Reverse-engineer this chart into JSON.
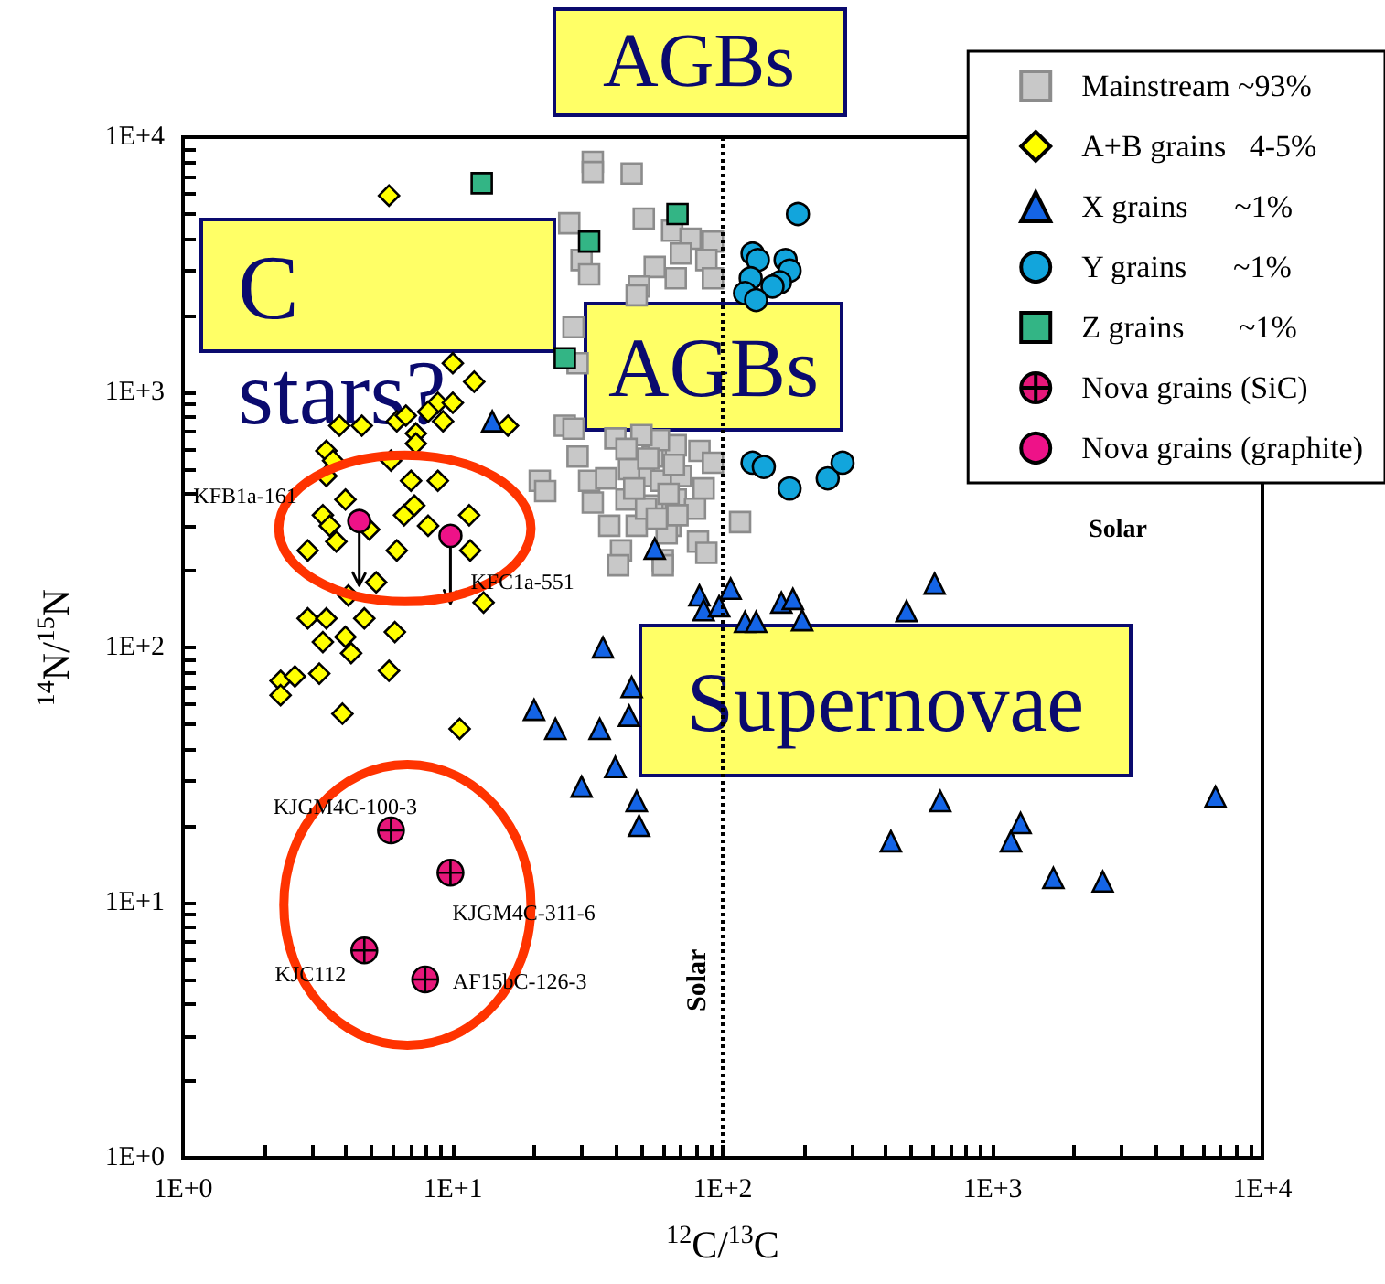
{
  "chart_data": {
    "type": "scatter",
    "xlabel": "$^{12}$C/$^{13}$C",
    "ylabel": "$^{14}$N/$^{15}$N",
    "log": "xy",
    "grid": false,
    "legend": "top right",
    "xlim": [
      1,
      10000
    ],
    "ylim": [
      1,
      10000
    ],
    "xticks": [
      {
        "value": 1,
        "label": "1E+0"
      },
      {
        "value": 10,
        "label": "1E+1"
      },
      {
        "value": 100,
        "label": "1E+2"
      },
      {
        "value": 1000,
        "label": "1E+3"
      },
      {
        "value": 10000,
        "label": "1E+4"
      }
    ],
    "yticks": [
      {
        "value": 1,
        "label": "1E+0"
      },
      {
        "value": 10,
        "label": "1E+1"
      },
      {
        "value": 100,
        "label": "1E+2"
      },
      {
        "value": 1000,
        "label": "1E+3"
      },
      {
        "value": 10000,
        "label": "1E+4"
      }
    ],
    "series": [
      {
        "name": "Mainstream ~93%",
        "color": "#c8c8c8",
        "marker": "square",
        "x": [
          33,
          33,
          46,
          51,
          27,
          65,
          76,
          92,
          70,
          87,
          30,
          32,
          56,
          67,
          92,
          49,
          48,
          28,
          29,
          26,
          28,
          40,
          29,
          55,
          67,
          82,
          92,
          21,
          22,
          32,
          37,
          51,
          59,
          70,
          85,
          33,
          44,
          55,
          67,
          79,
          38,
          48,
          64,
          81,
          116,
          42,
          60,
          41,
          87,
          60,
          45,
          52,
          58,
          62,
          47,
          53,
          66,
          57,
          50,
          63,
          44,
          68
        ],
        "values": [
          8000,
          7300,
          7200,
          4800,
          4600,
          4300,
          4000,
          3900,
          3500,
          3300,
          3300,
          2900,
          3100,
          2800,
          2800,
          2600,
          2400,
          1800,
          1300,
          740,
          720,
          660,
          560,
          560,
          620,
          590,
          530,
          450,
          410,
          450,
          460,
          470,
          450,
          470,
          420,
          370,
          380,
          360,
          380,
          350,
          300,
          300,
          300,
          260,
          310,
          240,
          220,
          210,
          235,
          210,
          500,
          350,
          650,
          280,
          420,
          550,
          520,
          320,
          680,
          400,
          600,
          330
        ]
      },
      {
        "name": "A+B grains   4-5%",
        "color": "#ffff00",
        "marker": "diamond",
        "x": [
          5.8,
          10,
          12,
          8.8,
          8.1,
          10,
          9.2,
          4.6,
          6.2,
          7.3,
          16,
          3.4,
          3.6,
          5.9,
          7.3,
          3.4,
          4.0,
          7.0,
          8.8,
          3.3,
          3.5,
          4.9,
          6.6,
          7.2,
          8.1,
          11.5,
          11.6,
          6.2,
          3.7,
          2.9,
          4.1,
          5.2,
          4.7,
          2.9,
          3.4,
          4.0,
          3.3,
          4.2,
          6.1,
          5.8,
          2.3,
          2.6,
          3.2,
          2.3,
          3.9,
          10.6,
          13,
          3.8,
          6.7
        ],
        "values": [
          5900,
          1300,
          1100,
          910,
          840,
          910,
          770,
          740,
          770,
          690,
          740,
          590,
          540,
          540,
          630,
          470,
          380,
          450,
          450,
          330,
          300,
          290,
          330,
          360,
          300,
          330,
          240,
          240,
          260,
          240,
          160,
          180,
          130,
          130,
          130,
          110,
          105,
          95,
          115,
          81,
          74,
          77,
          79,
          65,
          55,
          48,
          150,
          740,
          810
        ]
      },
      {
        "name": "X grains      ~1%",
        "color": "#1464e6",
        "marker": "triangle",
        "x": [
          14,
          56,
          82,
          107,
          85,
          97,
          165,
          182,
          121,
          133,
          197,
          480,
          610,
          36,
          46,
          45,
          20,
          24,
          35,
          40,
          30,
          48,
          49,
          640,
          420,
          1270,
          1170,
          1680,
          2560,
          6700
        ],
        "values": [
          770,
          244,
          160,
          170,
          140,
          145,
          150,
          155,
          126,
          126,
          128,
          139,
          178,
          100,
          70,
          54,
          57,
          48,
          48,
          34,
          28.5,
          25,
          20,
          25,
          17.4,
          20.5,
          17.4,
          12.5,
          12.1,
          26
        ]
      },
      {
        "name": "Y grains      ~1%",
        "color": "#12a5dc",
        "marker": "circle",
        "x": [
          190,
          129,
          135,
          171,
          177,
          127,
          163,
          153,
          121,
          133,
          129,
          142,
          177,
          245,
          278
        ],
        "values": [
          5000,
          3500,
          3300,
          3300,
          3000,
          2800,
          2700,
          2600,
          2450,
          2300,
          530,
          510,
          420,
          460,
          530
        ]
      },
      {
        "name": "Z grains       ~1%",
        "color": "#33b585",
        "marker": "square",
        "x": [
          12.8,
          68,
          32,
          26
        ],
        "values": [
          6600,
          5000,
          3900,
          1360
        ]
      },
      {
        "name": "Nova grains (SiC)",
        "color": "#e6177a",
        "marker": "cross",
        "x": [
          5.9,
          9.8,
          4.7,
          7.9
        ],
        "values": [
          19.2,
          13.1,
          6.5,
          5.0
        ]
      },
      {
        "name": "Nova grains (graphite)",
        "color": "#ee1288",
        "marker": "circle",
        "x": [
          4.5,
          9.8
        ],
        "values": [
          313,
          274
        ],
        "errors": [
          [
            175,
            313
          ],
          [
            149,
            274
          ]
        ]
      }
    ],
    "ref_lines": [
      {
        "axis": "x",
        "value": 100,
        "label": "Solar",
        "line_style": "dotted"
      }
    ],
    "annotations": [
      "AGBs",
      "C stars?",
      "AGBs",
      "Supernovae",
      {
        "text": "KFB1a-161",
        "x": 4.5,
        "y": 313
      },
      {
        "text": "KFC1a-551",
        "x": 9.8,
        "y": 274
      },
      {
        "text": "KJGM4C-100-3",
        "x": 5.9,
        "y": 19.2
      },
      {
        "text": "KJGM4C-311-6",
        "x": 9.8,
        "y": 13.1
      },
      {
        "text": "KJC112",
        "x": 4.7,
        "y": 6.5
      },
      {
        "text": "AF15bC-126-3",
        "x": 7.9,
        "y": 5.0
      },
      "Solar"
    ]
  }
}
